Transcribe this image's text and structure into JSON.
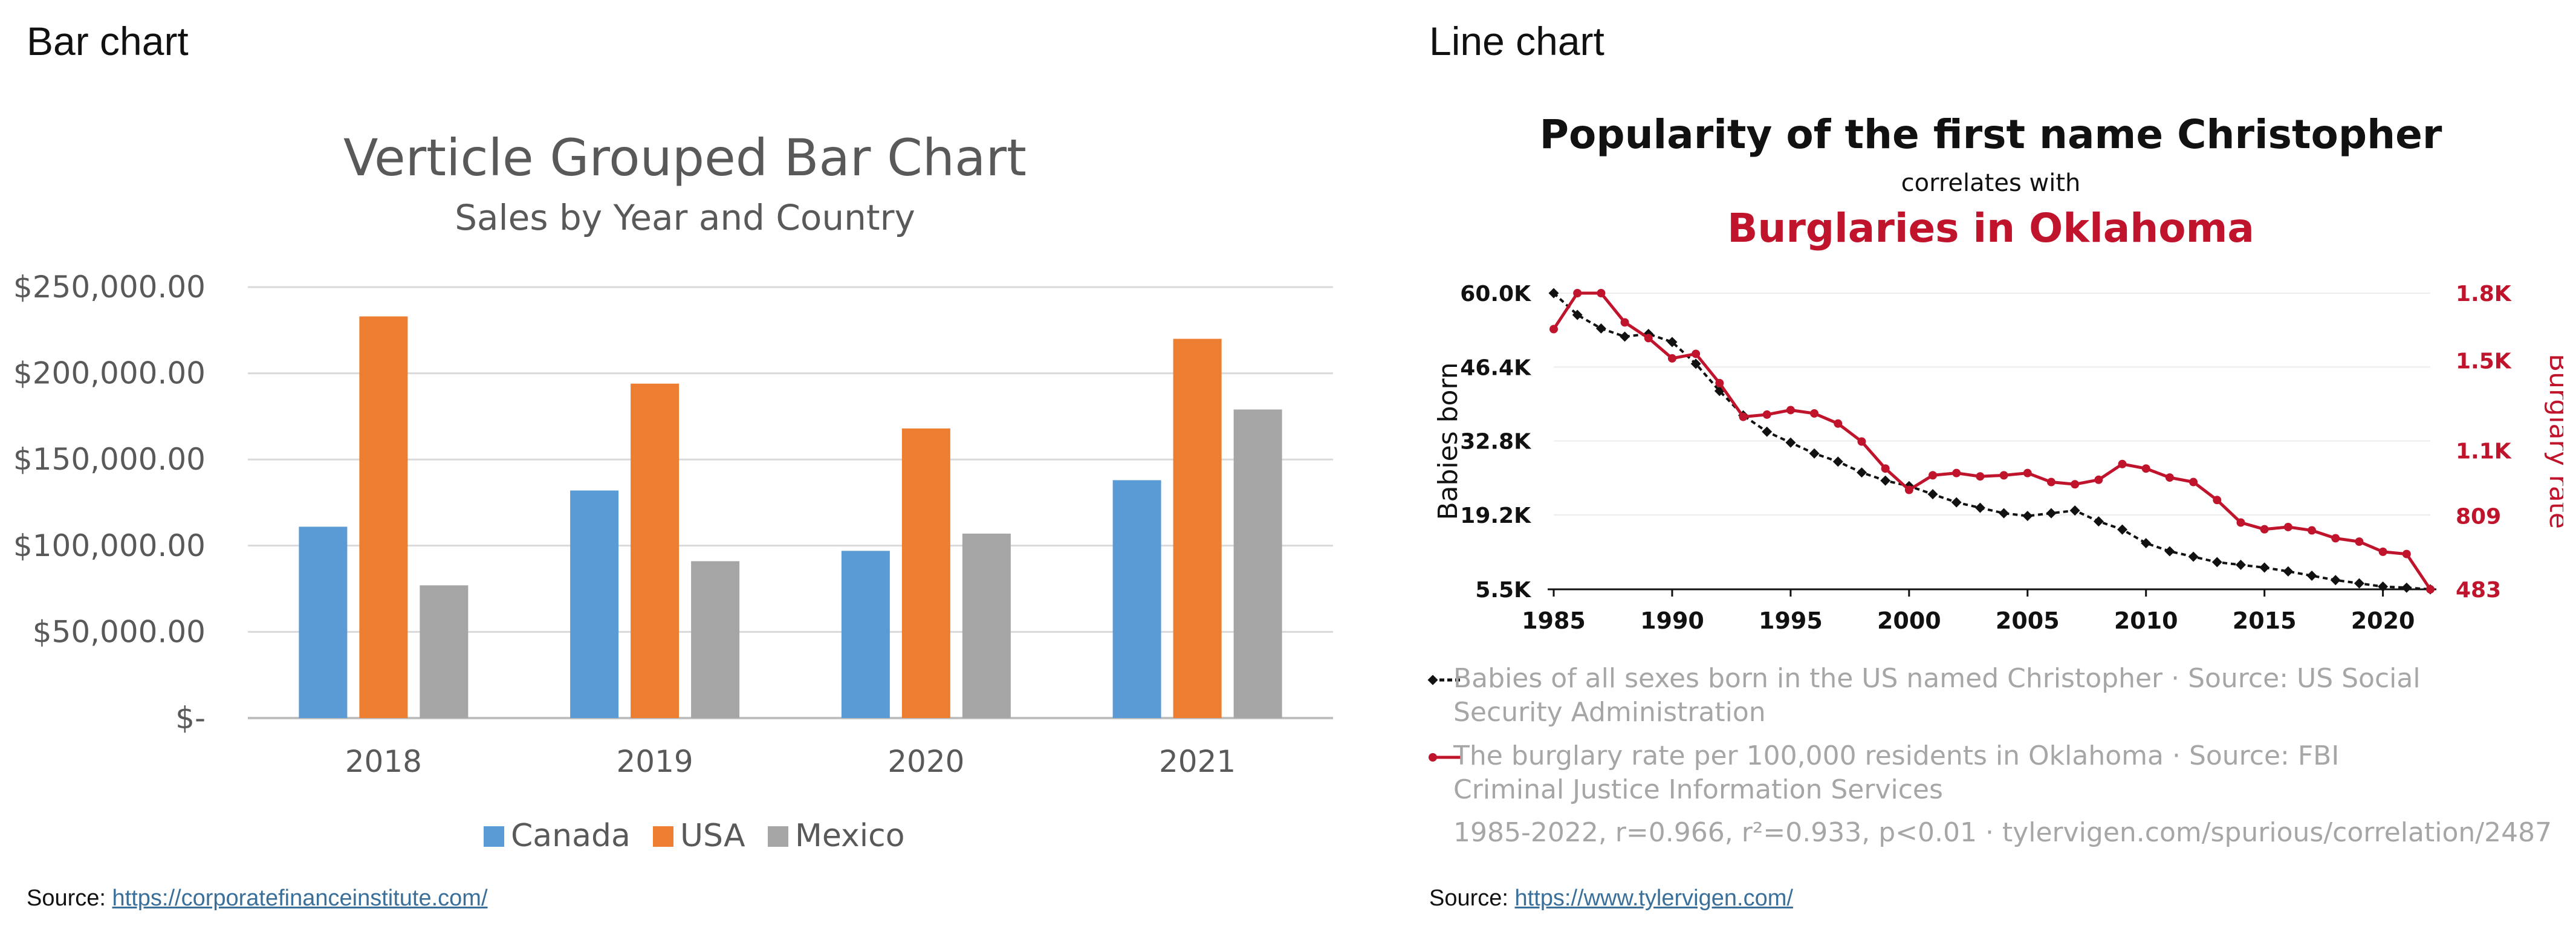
{
  "left_panel": {
    "heading": "Bar chart",
    "source_label": "Source:",
    "source_link": "https://corporatefinanceinstitute.com/"
  },
  "right_panel": {
    "heading": "Line chart",
    "source_label": "Source:",
    "source_link": "https://www.tylervigen.com/"
  },
  "chart_data": [
    {
      "type": "bar",
      "title": "Verticle Grouped Bar Chart",
      "subtitle": "Sales by Year and Country",
      "categories": [
        "2018",
        "2019",
        "2020",
        "2021"
      ],
      "series": [
        {
          "name": "Canada",
          "color": "#5b9bd5",
          "values": [
            111000,
            132000,
            97000,
            138000
          ]
        },
        {
          "name": "USA",
          "color": "#ed7d31",
          "values": [
            233000,
            194000,
            168000,
            220000
          ]
        },
        {
          "name": "Mexico",
          "color": "#a5a5a5",
          "values": [
            77000,
            91000,
            107000,
            179000
          ]
        }
      ],
      "ylim": [
        0,
        250000
      ],
      "y_ticks": [
        0,
        50000,
        100000,
        150000,
        200000,
        250000
      ],
      "y_tick_labels": [
        "$-",
        "$50,000.00",
        "$100,000.00",
        "$150,000.00",
        "$200,000.00",
        "$250,000.00"
      ],
      "xlabel": "",
      "ylabel": "",
      "grid": true,
      "legend_position": "bottom"
    },
    {
      "type": "line",
      "title": "Popularity of the first name Christopher",
      "subtitle": "correlates with",
      "subtitle2": "Burglaries in Oklahoma",
      "x": [
        1985,
        1986,
        1987,
        1988,
        1989,
        1990,
        1991,
        1992,
        1993,
        1994,
        1995,
        1996,
        1997,
        1998,
        1999,
        2000,
        2001,
        2002,
        2003,
        2004,
        2005,
        2006,
        2007,
        2008,
        2009,
        2010,
        2011,
        2012,
        2013,
        2014,
        2015,
        2016,
        2017,
        2018,
        2019,
        2020,
        2021,
        2022
      ],
      "series": [
        {
          "name": "Babies of all sexes born in the US named Christopher · Source: US Social Security Administration",
          "axis": "left",
          "color": "#111111",
          "style": "dashed",
          "values": [
            60000,
            56000,
            53500,
            52000,
            52500,
            51000,
            47000,
            42000,
            37500,
            34500,
            32500,
            30500,
            29000,
            27000,
            25500,
            24500,
            23000,
            21500,
            20500,
            19500,
            19000,
            19500,
            20000,
            18000,
            16500,
            14000,
            12500,
            11500,
            10500,
            10000,
            9500,
            8800,
            8000,
            7200,
            6600,
            6000,
            5800,
            5500
          ]
        },
        {
          "name": "The burglary rate per 100,000 residents in Oklahoma · Source: FBI Criminal Justice Information Services",
          "axis": "right",
          "color": "#c0142c",
          "style": "solid",
          "values": [
            1640,
            1800,
            1800,
            1670,
            1600,
            1510,
            1530,
            1400,
            1250,
            1260,
            1280,
            1265,
            1220,
            1140,
            1020,
            925,
            990,
            1000,
            985,
            990,
            1000,
            960,
            950,
            970,
            1040,
            1020,
            980,
            960,
            880,
            780,
            750,
            760,
            745,
            710,
            695,
            650,
            640,
            483
          ]
        }
      ],
      "left_ylim": [
        5500,
        60000
      ],
      "left_ticks": [
        5500,
        19200,
        32800,
        46400,
        60000
      ],
      "left_tick_labels": [
        "5.5K",
        "19.2K",
        "32.8K",
        "46.4K",
        "60.0K"
      ],
      "right_ylim": [
        483,
        1800
      ],
      "right_ticks": [
        483,
        809,
        1100,
        1500,
        1800
      ],
      "right_tick_labels": [
        "483",
        "809",
        "1.1K",
        "1.5K",
        "1.8K"
      ],
      "x_ticks": [
        1985,
        1990,
        1995,
        2000,
        2005,
        2010,
        2015,
        2020
      ],
      "x_tick_labels": [
        "1985",
        "1990",
        "1995",
        "2000",
        "2005",
        "2010",
        "2015",
        "2020"
      ],
      "ylabel_left": "Babies born",
      "ylabel_right": "Burglary rate",
      "xlabel": "",
      "grid": true,
      "legend_position": "bottom",
      "footnote": "1985-2022, r=0.966, r²=0.933, p<0.01 · tylervigen.com/spurious/correlation/2487"
    }
  ]
}
